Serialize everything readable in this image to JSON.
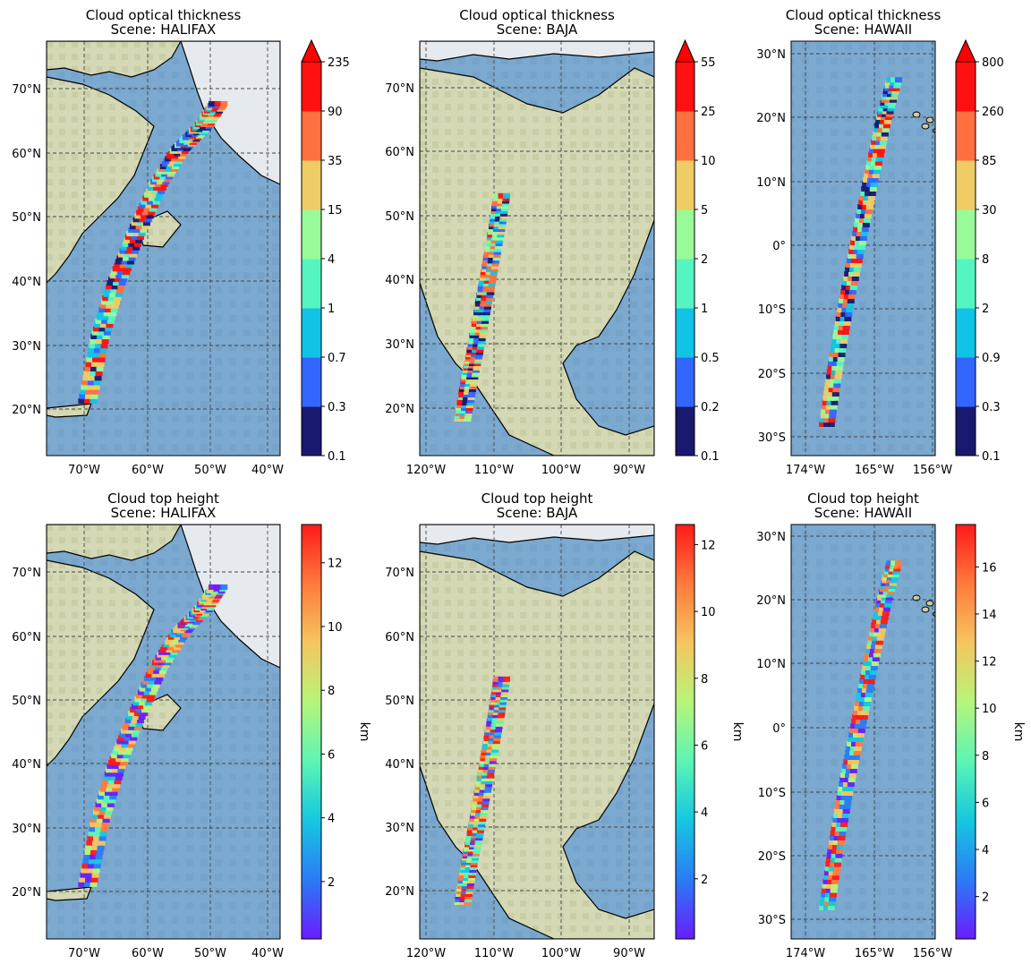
{
  "figure": {
    "panels": [
      {
        "title_line1": "Cloud optical thickness",
        "title_line2": "Scene: HALIFAX",
        "x_ticks": [
          "70°W",
          "60°W",
          "50°W",
          "40°W"
        ],
        "y_ticks": [
          "20°N",
          "30°N",
          "40°N",
          "50°N",
          "60°N",
          "70°N"
        ],
        "colorbar": {
          "type": "discrete",
          "extend": "max",
          "ticks": [
            "0.1",
            "0.3",
            "0.7",
            "1",
            "4",
            "15",
            "35",
            "90",
            "235"
          ],
          "label": ""
        }
      },
      {
        "title_line1": "Cloud optical thickness",
        "title_line2": "Scene: BAJA",
        "x_ticks": [
          "120°W",
          "110°W",
          "100°W",
          "90°W"
        ],
        "y_ticks": [
          "20°N",
          "30°N",
          "40°N",
          "50°N",
          "60°N",
          "70°N"
        ],
        "colorbar": {
          "type": "discrete",
          "extend": "max",
          "ticks": [
            "0.1",
            "0.2",
            "0.5",
            "1",
            "2",
            "5",
            "10",
            "25",
            "55"
          ],
          "label": ""
        }
      },
      {
        "title_line1": "Cloud optical thickness",
        "title_line2": "Scene: HAWAII",
        "x_ticks": [
          "174°W",
          "165°W",
          "156°W"
        ],
        "y_ticks": [
          "30°S",
          "20°S",
          "10°S",
          "0°",
          "10°N",
          "20°N",
          "30°N"
        ],
        "colorbar": {
          "type": "discrete",
          "extend": "max",
          "ticks": [
            "0.1",
            "0.3",
            "0.9",
            "2",
            "8",
            "30",
            "85",
            "260",
            "800"
          ],
          "label": ""
        }
      },
      {
        "title_line1": "Cloud top height",
        "title_line2": "Scene: HALIFAX",
        "x_ticks": [
          "70°W",
          "60°W",
          "50°W",
          "40°W"
        ],
        "y_ticks": [
          "20°N",
          "30°N",
          "40°N",
          "50°N",
          "60°N",
          "70°N"
        ],
        "colorbar": {
          "type": "continuous",
          "min": 0.2,
          "max": 13.2,
          "ticks": [
            "2",
            "4",
            "6",
            "8",
            "10",
            "12"
          ],
          "tick_values": [
            2,
            4,
            6,
            8,
            10,
            12
          ],
          "label": "km"
        }
      },
      {
        "title_line1": "Cloud top height",
        "title_line2": "Scene: BAJA",
        "x_ticks": [
          "120°W",
          "110°W",
          "100°W",
          "90°W"
        ],
        "y_ticks": [
          "20°N",
          "30°N",
          "40°N",
          "50°N",
          "60°N",
          "70°N"
        ],
        "colorbar": {
          "type": "continuous",
          "min": 0.2,
          "max": 12.6,
          "ticks": [
            "2",
            "4",
            "6",
            "8",
            "10",
            "12"
          ],
          "tick_values": [
            2,
            4,
            6,
            8,
            10,
            12
          ],
          "label": "km"
        }
      },
      {
        "title_line1": "Cloud top height",
        "title_line2": "Scene: HAWAII",
        "x_ticks": [
          "174°W",
          "165°W",
          "156°W"
        ],
        "y_ticks": [
          "30°S",
          "20°S",
          "10°S",
          "0°",
          "10°N",
          "20°N",
          "30°N"
        ],
        "colorbar": {
          "type": "continuous",
          "min": 0.2,
          "max": 17.8,
          "ticks": [
            "2",
            "4",
            "6",
            "8",
            "10",
            "12",
            "14",
            "16"
          ],
          "tick_values": [
            2,
            4,
            6,
            8,
            10,
            12,
            14,
            16
          ],
          "label": "km"
        }
      }
    ]
  },
  "chart_data": [
    {
      "type": "heatmap",
      "title": "Cloud optical thickness\nScene: HALIFAX",
      "x_ticks": [
        "70°W",
        "60°W",
        "50°W",
        "40°W"
      ],
      "y_ticks": [
        "20°N",
        "30°N",
        "40°N",
        "50°N",
        "60°N",
        "70°N"
      ],
      "colorbar_ticks": [
        0.1,
        0.3,
        0.7,
        1,
        4,
        15,
        35,
        90,
        235
      ],
      "grid": true
    },
    {
      "type": "heatmap",
      "title": "Cloud optical thickness\nScene: BAJA",
      "x_ticks": [
        "120°W",
        "110°W",
        "100°W",
        "90°W"
      ],
      "y_ticks": [
        "20°N",
        "30°N",
        "40°N",
        "50°N",
        "60°N",
        "70°N"
      ],
      "colorbar_ticks": [
        0.1,
        0.2,
        0.5,
        1,
        2,
        5,
        10,
        25,
        55
      ],
      "grid": true
    },
    {
      "type": "heatmap",
      "title": "Cloud optical thickness\nScene: HAWAII",
      "x_ticks": [
        "174°W",
        "165°W",
        "156°W"
      ],
      "y_ticks": [
        "30°S",
        "20°S",
        "10°S",
        "0°",
        "10°N",
        "20°N",
        "30°N"
      ],
      "colorbar_ticks": [
        0.1,
        0.3,
        0.9,
        2,
        8,
        30,
        85,
        260,
        800
      ],
      "grid": true
    },
    {
      "type": "heatmap",
      "title": "Cloud top height\nScene: HALIFAX",
      "colorbar_label": "km",
      "colorbar_ticks": [
        2,
        4,
        6,
        8,
        10,
        12
      ],
      "grid": true
    },
    {
      "type": "heatmap",
      "title": "Cloud top height\nScene: BAJA",
      "colorbar_label": "km",
      "colorbar_ticks": [
        2,
        4,
        6,
        8,
        10,
        12
      ],
      "grid": true
    },
    {
      "type": "heatmap",
      "title": "Cloud top height\nScene: HAWAII",
      "colorbar_label": "km",
      "colorbar_ticks": [
        2,
        4,
        6,
        8,
        10,
        12,
        14,
        16
      ],
      "grid": true
    }
  ],
  "colors": {
    "ocean": "#7aa8cf",
    "land": "#cfd4b4",
    "ice": "#e6eaee",
    "grid": "#444444",
    "discrete_palette": [
      "#191970",
      "#3366ff",
      "#11c4e6",
      "#55f5c2",
      "#99fa99",
      "#eecc66",
      "#ff7040",
      "#ff1111",
      "#ff0000"
    ],
    "rainbow_palette": [
      "#6a1dff",
      "#2b7bf5",
      "#15c7e0",
      "#5cf5b4",
      "#b6f57a",
      "#f5c560",
      "#ff7a3c",
      "#ff1a1a"
    ]
  }
}
